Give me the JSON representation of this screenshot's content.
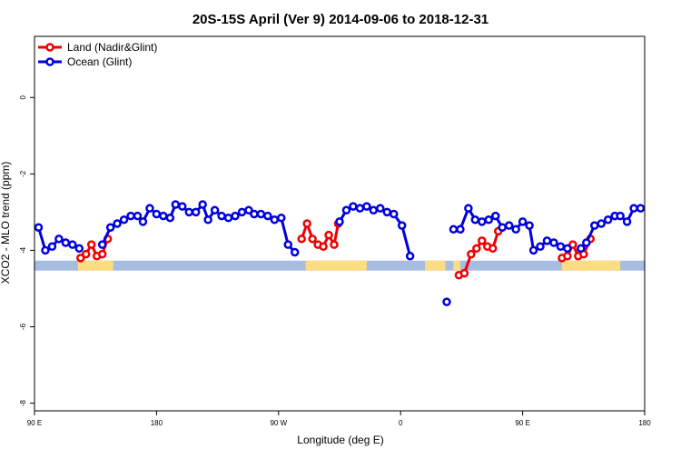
{
  "chart_data": {
    "type": "line",
    "title": "20S-15S April (Ver 9)   2014-09-06 to 2018-12-31",
    "xlabel": "Longitude (deg E)",
    "ylabel": "XCO2 - MLO trend (ppm)",
    "xlim": [
      90,
      540
    ],
    "ylim": [
      -8.2,
      1.6
    ],
    "x_ticks": [
      {
        "value": 90,
        "label": "90 E"
      },
      {
        "value": 180,
        "label": "180"
      },
      {
        "value": 270,
        "label": "90 W"
      },
      {
        "value": 360,
        "label": "0"
      },
      {
        "value": 450,
        "label": "90 E"
      },
      {
        "value": 540,
        "label": "180"
      }
    ],
    "y_ticks": [
      {
        "value": 0,
        "label": "0"
      },
      {
        "value": -2,
        "label": "-2"
      },
      {
        "value": -4,
        "label": "-4"
      },
      {
        "value": -6,
        "label": "-6"
      },
      {
        "value": -8,
        "label": "-8"
      }
    ],
    "legend_position": "top-left",
    "grid": false,
    "band": {
      "y_center": -4.4,
      "half_height": 0.13,
      "ocean_color": "#a5bde0",
      "land_color": "#fddd84",
      "land_segments": [
        [
          122,
          148
        ],
        [
          290,
          335
        ],
        [
          378,
          393
        ],
        [
          399,
          404
        ],
        [
          479,
          522
        ]
      ]
    },
    "series": [
      {
        "name": "Land (Nadir&Glint)",
        "color": "#ee0000",
        "segments": [
          [
            [
              124,
              -4.2
            ],
            [
              128,
              -4.1
            ],
            [
              132,
              -3.85
            ],
            [
              136,
              -4.15
            ],
            [
              140,
              -4.1
            ],
            [
              144,
              -3.7
            ]
          ],
          [
            [
              287,
              -3.7
            ],
            [
              291,
              -3.3
            ],
            [
              295,
              -3.7
            ],
            [
              299,
              -3.85
            ],
            [
              303,
              -3.9
            ],
            [
              307,
              -3.6
            ],
            [
              311,
              -3.85
            ],
            [
              314,
              -3.3
            ]
          ],
          [
            [
              403,
              -4.65
            ],
            [
              407,
              -4.6
            ],
            [
              412,
              -4.1
            ],
            [
              416,
              -3.95
            ],
            [
              420,
              -3.75
            ],
            [
              424,
              -3.9
            ],
            [
              428,
              -3.95
            ],
            [
              432,
              -3.5
            ]
          ],
          [
            [
              479,
              -4.2
            ],
            [
              483,
              -4.15
            ],
            [
              487,
              -3.85
            ],
            [
              491,
              -4.15
            ],
            [
              495,
              -4.1
            ],
            [
              500,
              -3.7
            ]
          ]
        ]
      },
      {
        "name": "Ocean (Glint)",
        "color": "#0000dd",
        "segments": [
          [
            [
              93,
              -3.4
            ],
            [
              98,
              -4.0
            ],
            [
              103,
              -3.9
            ],
            [
              108,
              -3.7
            ],
            [
              113,
              -3.8
            ],
            [
              118,
              -3.85
            ],
            [
              123,
              -3.95
            ]
          ],
          [
            [
              140,
              -3.85
            ],
            [
              146,
              -3.4
            ],
            [
              151,
              -3.3
            ],
            [
              156,
              -3.2
            ],
            [
              161,
              -3.1
            ],
            [
              166,
              -3.1
            ],
            [
              170,
              -3.25
            ],
            [
              175,
              -2.9
            ],
            [
              180,
              -3.05
            ],
            [
              185,
              -3.1
            ],
            [
              190,
              -3.15
            ],
            [
              194,
              -2.8
            ],
            [
              199,
              -2.85
            ],
            [
              204,
              -3.0
            ],
            [
              209,
              -3.0
            ],
            [
              214,
              -2.8
            ],
            [
              218,
              -3.2
            ],
            [
              223,
              -2.95
            ],
            [
              228,
              -3.1
            ],
            [
              233,
              -3.15
            ],
            [
              238,
              -3.1
            ],
            [
              243,
              -3.0
            ],
            [
              248,
              -2.95
            ],
            [
              252,
              -3.05
            ],
            [
              257,
              -3.05
            ],
            [
              262,
              -3.1
            ],
            [
              267,
              -3.2
            ],
            [
              272,
              -3.15
            ],
            [
              277,
              -3.85
            ],
            [
              282,
              -4.05
            ]
          ],
          [
            [
              315,
              -3.25
            ],
            [
              320,
              -2.95
            ],
            [
              325,
              -2.85
            ],
            [
              330,
              -2.9
            ],
            [
              335,
              -2.85
            ],
            [
              340,
              -2.95
            ],
            [
              345,
              -2.9
            ],
            [
              350,
              -3.0
            ],
            [
              355,
              -3.05
            ],
            [
              361,
              -3.35
            ],
            [
              367,
              -4.15
            ]
          ],
          [
            [
              394,
              -5.35
            ]
          ],
          [
            [
              399,
              -3.45
            ],
            [
              404,
              -3.45
            ],
            [
              410,
              -2.9
            ],
            [
              415,
              -3.2
            ],
            [
              420,
              -3.25
            ],
            [
              425,
              -3.2
            ],
            [
              430,
              -3.1
            ],
            [
              435,
              -3.4
            ],
            [
              440,
              -3.35
            ],
            [
              445,
              -3.45
            ],
            [
              450,
              -3.25
            ],
            [
              455,
              -3.35
            ],
            [
              458,
              -4.0
            ],
            [
              463,
              -3.9
            ],
            [
              468,
              -3.75
            ],
            [
              473,
              -3.8
            ],
            [
              478,
              -3.9
            ],
            [
              483,
              -3.95
            ]
          ],
          [
            [
              493,
              -3.95
            ],
            [
              497,
              -3.8
            ],
            [
              503,
              -3.35
            ],
            [
              508,
              -3.3
            ],
            [
              513,
              -3.2
            ],
            [
              518,
              -3.1
            ],
            [
              522,
              -3.1
            ],
            [
              527,
              -3.25
            ],
            [
              532,
              -2.9
            ],
            [
              537,
              -2.9
            ]
          ]
        ]
      }
    ]
  }
}
